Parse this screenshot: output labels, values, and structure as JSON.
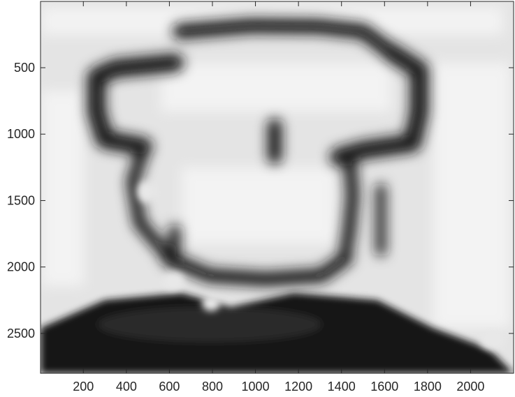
{
  "chart_data": {
    "type": "heatmap",
    "colormap": "gray",
    "title": "",
    "xlabel": "",
    "ylabel": "",
    "xlim": [
      1,
      2200
    ],
    "ylim": [
      1,
      2800
    ],
    "y_direction": "reverse",
    "xticks": [
      200,
      400,
      600,
      800,
      1000,
      1200,
      1400,
      1600,
      1800,
      2000
    ],
    "yticks": [
      500,
      1000,
      1500,
      2000,
      2500
    ],
    "grid": false,
    "content": "blurred grayscale image of a figure wearing a hat, dark outline on light background"
  }
}
